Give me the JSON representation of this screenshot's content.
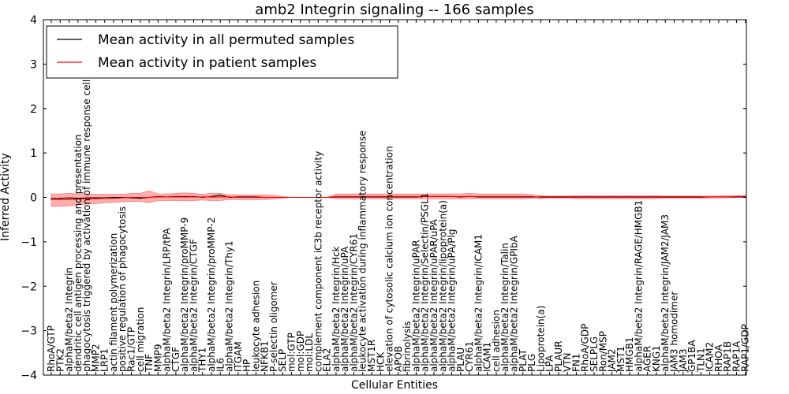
{
  "chart_data": {
    "type": "line",
    "title": "amb2 Integrin signaling -- 166 samples",
    "xlabel": "Cellular Entities",
    "ylabel": "Inferred Activity",
    "ylim": [
      -4,
      4
    ],
    "yticks": [
      -4,
      -3,
      -2,
      -1,
      0,
      1,
      2,
      3,
      4
    ],
    "grid": false,
    "legend_position": "top-left",
    "legend": [
      "Mean activity in all permuted samples",
      "Mean activity in patient samples"
    ],
    "colors": {
      "permuted": "#000000",
      "patient": "#ff0000",
      "band": "#ff9999"
    },
    "categories": [
      "RhoA/GTP",
      "PTK2",
      "alphaM/beta2 Integrin",
      "dendritic cell antigen processing and presentation",
      "phagocytosis triggered by activation of immune response cell surface",
      "MMP2",
      "LRP1",
      "actin filament polymerization",
      "positive regulation of phagocytosis",
      "Rac1/GTP",
      "cell migration",
      "TNF",
      "MMP9",
      "alphaM/beta2 Integrin/LRP/tPA",
      "CTGF",
      "alphaM/beta2 Integrin/proMMP-9",
      "alphaM/beta2 Integrin/CTGF",
      "THY1",
      "alphaM/beta2 Integrin/proMMP-2",
      "IL6",
      "alphaM/beta2 Integrin/Thy1",
      "ITGAM",
      "HP",
      "leukocyte adhesion",
      "NFKB1",
      "P-selectin oligomer",
      "SELP",
      "mol:GTP",
      "mol:GDP",
      "mol:LDL",
      "complement component iC3b receptor activity",
      "ELA2",
      "alphaM/beta2 Integrin/Hck",
      "alphaM/beta2 Integrin/uPA",
      "alphaM/beta2 Integrin/CYR61",
      "leukocyte activation during inflammatory response",
      "MST1R",
      "HCK",
      "elevation of cytosolic calcium ion concentration",
      "APOB",
      "fibrinolysis",
      "alphaM/beta2 Integrin/uPAR",
      "alphaM/beta2 Integrin/Selectin/PSGL1",
      "alphaM/beta2 Integrin/uPAR/uPA",
      "alphaM/beta2 Integrin/lipoprotein(a)",
      "alphaM/beta2 Integrin/uPA/Plg",
      "PLAU",
      "CYR61",
      "alphaM/beta2 Integrin/ICAM1",
      "ICAM1",
      "cell adhesion",
      "alphaM/beta2 Integrin/Talin",
      "alphaM/beta2 Integrin/GPIbA",
      "PLAT",
      "PLG",
      "Lipoprotein(a)",
      "LPA",
      "PLAUR",
      "VTN",
      "FN1",
      "RhoA/GDP",
      "SELPLG",
      "Ron/MSP",
      "JAM2",
      "MST1",
      "HMGB1",
      "alphaM/beta2 Integrin/RAGE/HMGB1",
      "AGER",
      "KNG1",
      "alphaM/beta2 Integrin/JAM2/JAM3",
      "JAM3 homodimer",
      "JAM3",
      "GP1BA",
      "TLN1",
      "ICAM2",
      "RHOA",
      "RAP1B",
      "RAP1A",
      "RAP1/GDP"
    ],
    "series": [
      {
        "name": "Mean activity in all permuted samples",
        "values": [
          -0.02,
          -0.02,
          -0.01,
          -0.02,
          -0.01,
          -0.01,
          -0.01,
          0.0,
          0.0,
          -0.01,
          -0.02,
          0.0,
          0.02,
          0.01,
          0.02,
          0.02,
          0.02,
          0.0,
          0.02,
          0.05,
          0.0,
          0.01,
          0.01,
          0.01,
          0.0,
          0.0,
          0.0,
          0.0,
          0.0,
          0.0,
          0.0,
          0.0,
          0.01,
          0.01,
          0.01,
          0.01,
          0.01,
          0.01,
          0.01,
          0.01,
          0.01,
          0.01,
          0.02,
          0.02,
          0.02,
          0.02,
          0.01,
          0.02,
          0.01,
          0.01,
          0.01,
          0.01,
          0.01,
          0.01,
          0.01,
          0.01,
          0.01,
          0.01,
          0.01,
          0.01,
          0.01,
          0.01,
          0.01,
          0.01,
          0.01,
          0.01,
          0.01,
          0.01,
          0.01,
          0.01,
          0.01,
          0.01,
          0.01,
          0.01,
          0.01,
          0.01,
          0.01,
          0.01,
          0.01
        ]
      },
      {
        "name": "Mean activity in patient samples",
        "values": [
          -0.05,
          -0.05,
          -0.05,
          -0.04,
          -0.03,
          -0.03,
          -0.02,
          -0.02,
          -0.01,
          0.0,
          0.0,
          0.0,
          0.01,
          0.01,
          0.01,
          0.01,
          0.01,
          0.01,
          0.01,
          0.01,
          0.01,
          0.0,
          0.0,
          0.0,
          0.0,
          0.0,
          0.0,
          0.0,
          0.0,
          0.0,
          0.0,
          0.0,
          0.02,
          0.02,
          0.02,
          0.02,
          0.02,
          0.02,
          0.02,
          0.02,
          0.02,
          0.02,
          0.02,
          0.02,
          0.02,
          0.02,
          0.02,
          0.02,
          0.02,
          0.02,
          0.02,
          0.02,
          0.02,
          0.02,
          0.02,
          0.0,
          0.0,
          0.0,
          0.0,
          0.0,
          0.0,
          0.0,
          0.0,
          0.0,
          0.0,
          0.0,
          0.0,
          0.0,
          0.0,
          0.0,
          0.0,
          0.0,
          0.0,
          0.0,
          0.01,
          0.01,
          0.01,
          0.02,
          0.02
        ]
      }
    ],
    "patient_band": {
      "upper": [
        0.08,
        0.08,
        0.09,
        0.08,
        0.08,
        0.07,
        0.07,
        0.07,
        0.07,
        0.09,
        0.09,
        0.15,
        0.08,
        0.08,
        0.09,
        0.1,
        0.09,
        0.07,
        0.09,
        0.09,
        0.06,
        0.06,
        0.06,
        0.06,
        0.06,
        0.05,
        0.02,
        0.0,
        0.0,
        0.0,
        0.0,
        0.0,
        0.08,
        0.08,
        0.08,
        0.08,
        0.08,
        0.08,
        0.08,
        0.08,
        0.08,
        0.08,
        0.08,
        0.08,
        0.08,
        0.08,
        0.08,
        0.09,
        0.08,
        0.08,
        0.08,
        0.08,
        0.08,
        0.08,
        0.06,
        0.04,
        0.03,
        0.03,
        0.03,
        0.04,
        0.04,
        0.04,
        0.04,
        0.04,
        0.04,
        0.04,
        0.04,
        0.04,
        0.04,
        0.03,
        0.03,
        0.03,
        0.03,
        0.03,
        0.03,
        0.03,
        0.04,
        0.04,
        0.05
      ],
      "lower": [
        -0.2,
        -0.2,
        -0.19,
        -0.17,
        -0.15,
        -0.14,
        -0.12,
        -0.11,
        -0.1,
        -0.09,
        -0.09,
        -0.12,
        -0.07,
        -0.07,
        -0.07,
        -0.08,
        -0.07,
        -0.06,
        -0.07,
        -0.07,
        -0.05,
        -0.05,
        -0.05,
        -0.05,
        -0.05,
        -0.04,
        -0.02,
        0.0,
        0.0,
        0.0,
        0.0,
        0.0,
        -0.03,
        -0.03,
        -0.03,
        -0.03,
        -0.03,
        -0.03,
        -0.03,
        -0.03,
        -0.03,
        -0.03,
        -0.03,
        -0.03,
        -0.03,
        -0.03,
        -0.03,
        -0.03,
        -0.03,
        -0.03,
        -0.03,
        -0.03,
        -0.03,
        -0.03,
        -0.02,
        -0.03,
        -0.02,
        -0.02,
        -0.02,
        -0.03,
        -0.03,
        -0.03,
        -0.03,
        -0.03,
        -0.03,
        -0.03,
        -0.03,
        -0.03,
        -0.03,
        -0.02,
        -0.02,
        -0.02,
        -0.02,
        -0.02,
        -0.02,
        -0.01,
        -0.01,
        0.0,
        0.0
      ]
    }
  }
}
